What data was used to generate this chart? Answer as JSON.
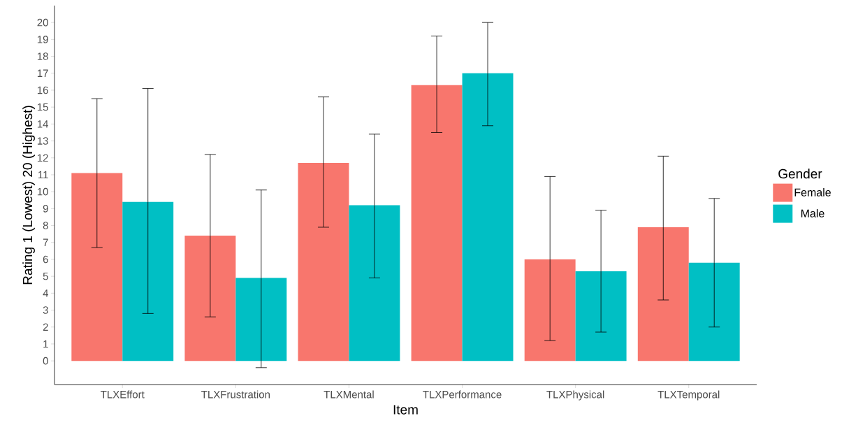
{
  "chart_data": {
    "type": "bar",
    "xlabel": "Item",
    "ylabel": "Rating 1 (Lowest) 20 (Highest)",
    "legend_title": "Gender",
    "categories": [
      "TLXEffort",
      "TLXFrustration",
      "TLXMental",
      "TLXPerformance",
      "TLXPhysical",
      "TLXTemporal"
    ],
    "series": [
      {
        "name": "Female",
        "color": "#f8766d",
        "values": [
          11.1,
          7.4,
          11.7,
          16.3,
          6.0,
          7.9
        ],
        "errors": [
          [
            6.7,
            15.5
          ],
          [
            2.6,
            12.2
          ],
          [
            7.9,
            15.6
          ],
          [
            13.5,
            19.2
          ],
          [
            1.2,
            10.9
          ],
          [
            3.6,
            12.1
          ]
        ]
      },
      {
        "name": "Male",
        "color": "#00bfc4",
        "values": [
          9.4,
          4.9,
          9.2,
          17.0,
          5.3,
          5.8
        ],
        "errors": [
          [
            2.8,
            16.1
          ],
          [
            -0.4,
            10.1
          ],
          [
            4.9,
            13.4
          ],
          [
            13.9,
            20.0
          ],
          [
            1.7,
            8.9
          ],
          [
            2.0,
            9.6
          ]
        ]
      }
    ],
    "ylim": [
      -1.4,
      21
    ],
    "yticks": [
      0,
      1,
      2,
      3,
      4,
      5,
      6,
      7,
      8,
      9,
      10,
      11,
      12,
      13,
      14,
      15,
      16,
      17,
      18,
      19,
      20
    ],
    "grid": false,
    "legend": "right"
  }
}
